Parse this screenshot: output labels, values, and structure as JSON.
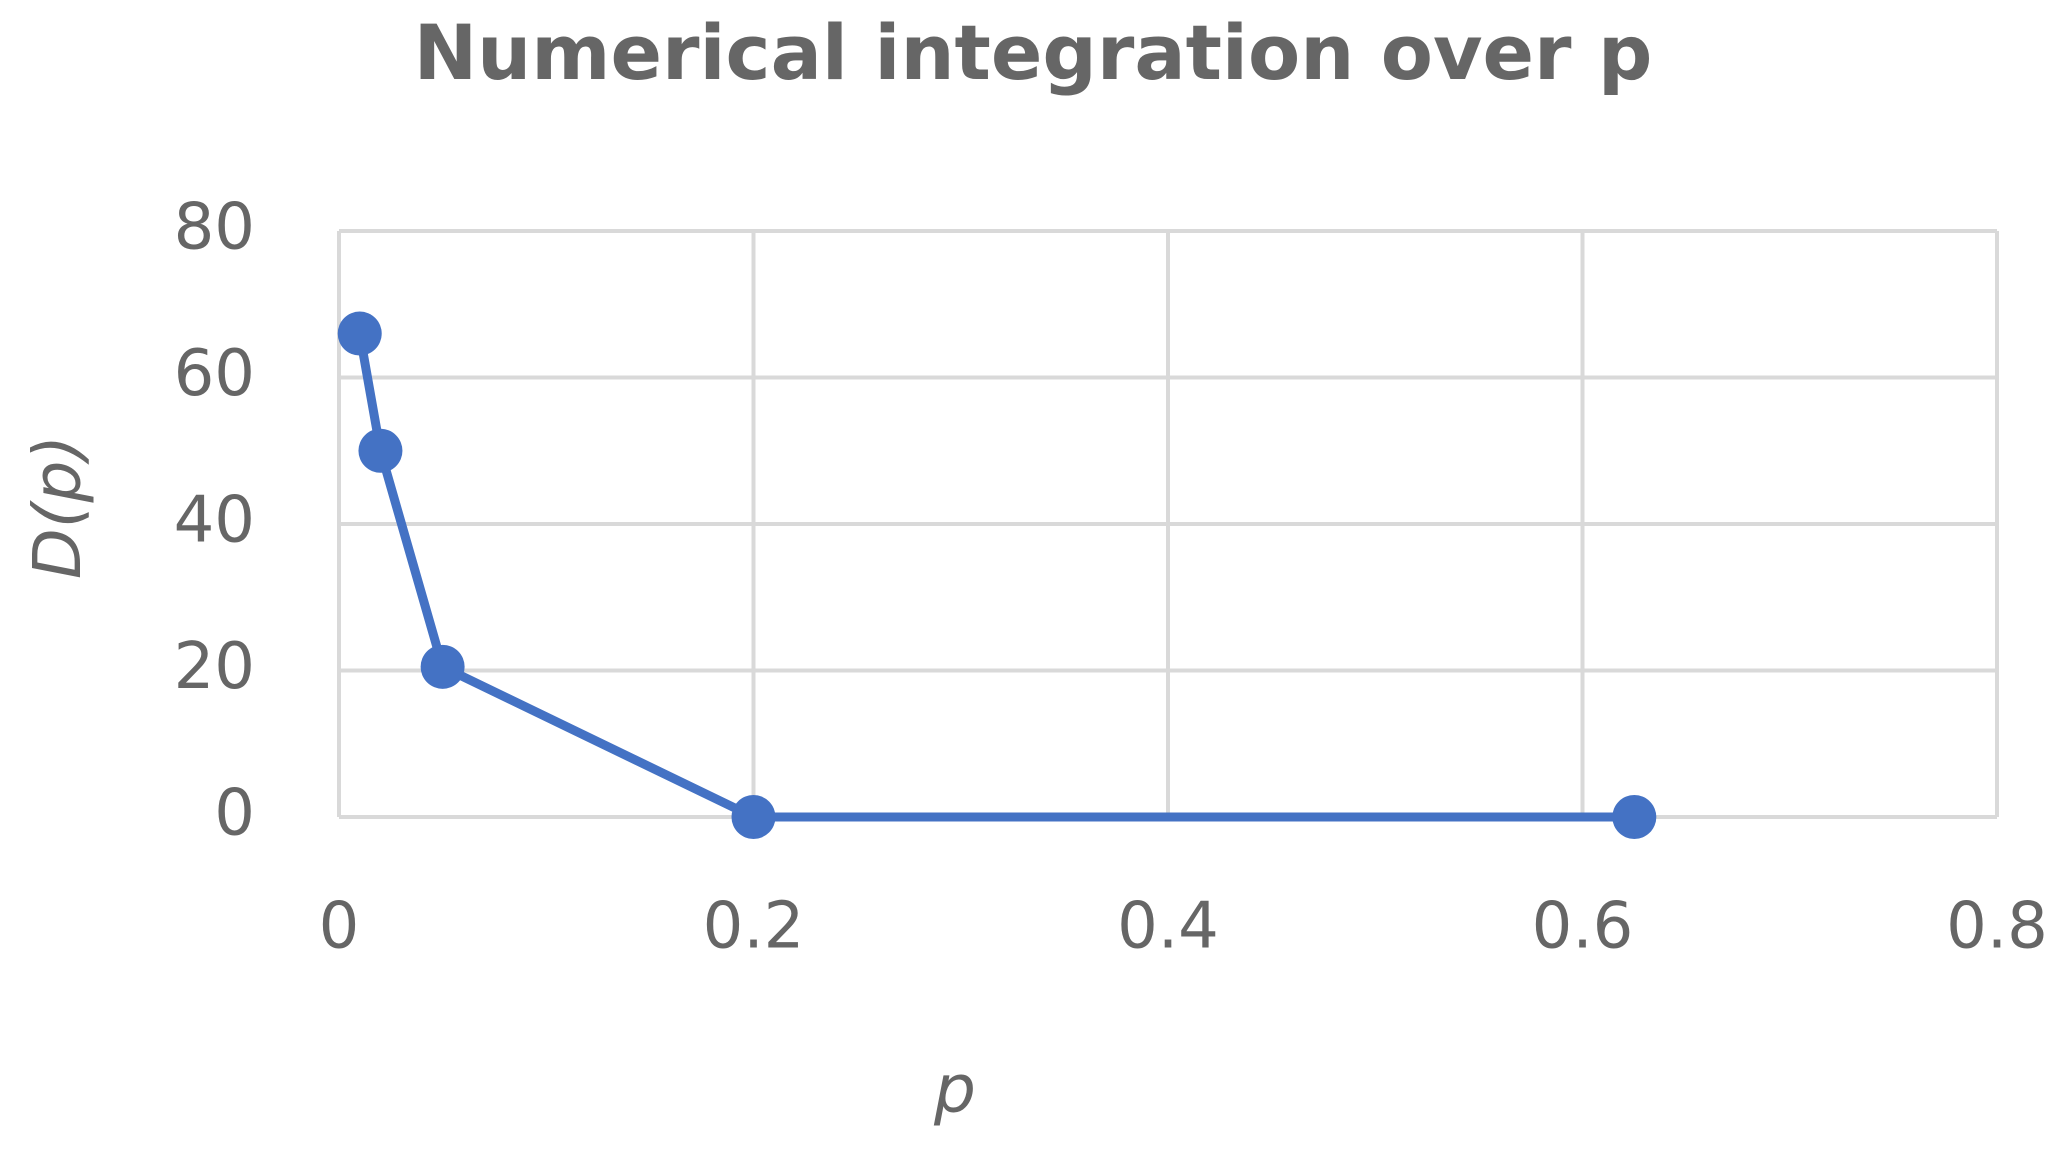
{
  "chart_data": {
    "type": "line",
    "title": "Numerical integration over p",
    "x_label": "p",
    "y_label": "D(p)",
    "x": [
      0.01,
      0.02,
      0.05,
      0.2,
      0.625
    ],
    "series": [
      {
        "name": "D(p)",
        "color": "#4472c4",
        "values": [
          66,
          50,
          20.5,
          0,
          0
        ]
      }
    ],
    "xlim": [
      0,
      0.8
    ],
    "xticks": [
      0,
      0.2,
      0.4,
      0.6,
      0.8
    ],
    "ylim": [
      0,
      80
    ],
    "yticks": [
      0,
      20,
      40,
      60,
      80
    ],
    "grid": true,
    "markers": true
  }
}
